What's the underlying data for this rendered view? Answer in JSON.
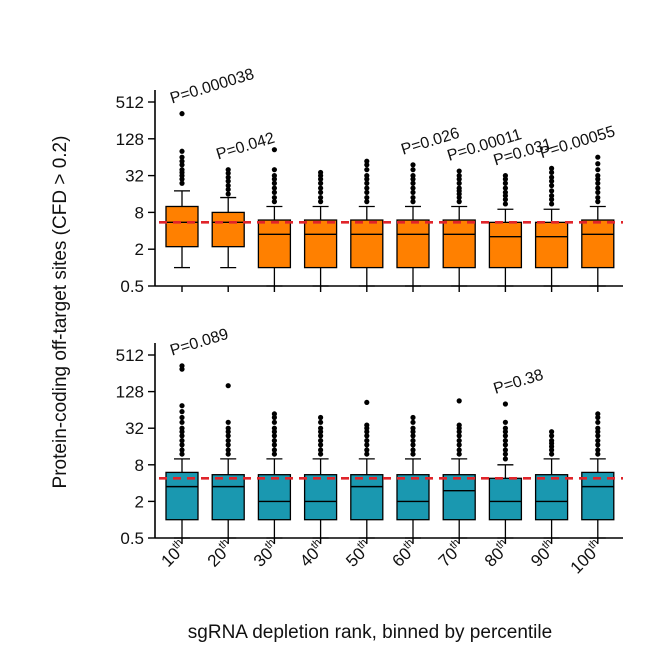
{
  "chart_data": {
    "type": "boxplot",
    "xlabel": "sgRNA depletion rank, binned by percentile",
    "ylabel": "Protein-coding off-target sites (CFD > 0.2)",
    "y_scale": "log2",
    "ylim": [
      0.5,
      512
    ],
    "yticks": [
      "512",
      "128",
      "32",
      "8",
      "2",
      "0.5"
    ],
    "categories": [
      {
        "base": "10",
        "sup": "th"
      },
      {
        "base": "20",
        "sup": "th"
      },
      {
        "base": "30",
        "sup": "th"
      },
      {
        "base": "40",
        "sup": "th"
      },
      {
        "base": "50",
        "sup": "th"
      },
      {
        "base": "60",
        "sup": "th"
      },
      {
        "base": "70",
        "sup": "th"
      },
      {
        "base": "80",
        "sup": "th"
      },
      {
        "base": "90",
        "sup": "th"
      },
      {
        "base": "100",
        "sup": "th"
      }
    ],
    "panels": [
      {
        "name": "top",
        "color": "#ff8000",
        "reference_line": 5.5,
        "reference_color": "#e0242a",
        "boxes": [
          {
            "low": 1,
            "q1": 2.2,
            "median": 5.5,
            "q3": 10,
            "high": 18,
            "outliers": [
              24,
              28,
              32,
              36,
              40,
              48,
              55,
              64,
              80,
              330
            ]
          },
          {
            "low": 1,
            "q1": 2.2,
            "median": 5.5,
            "q3": 8,
            "high": 14,
            "outliers": [
              16,
              19,
              22,
              26,
              30,
              35,
              40
            ]
          },
          {
            "low": 0.5,
            "q1": 1,
            "median": 3.5,
            "q3": 6,
            "high": 10,
            "outliers": [
              12,
              14,
              17,
              20,
              24,
              28,
              32,
              40,
              85
            ]
          },
          {
            "low": 0.5,
            "q1": 1,
            "median": 3.5,
            "q3": 6,
            "high": 10,
            "outliers": [
              12,
              14,
              17,
              20,
              24,
              28,
              32,
              36
            ]
          },
          {
            "low": 0.5,
            "q1": 1,
            "median": 3.5,
            "q3": 6,
            "high": 10,
            "outliers": [
              12,
              14,
              17,
              20,
              24,
              28,
              32,
              40,
              48,
              55
            ]
          },
          {
            "low": 0.5,
            "q1": 1,
            "median": 3.5,
            "q3": 6,
            "high": 10,
            "outliers": [
              12,
              14,
              17,
              20,
              24,
              28,
              32,
              40,
              48
            ]
          },
          {
            "low": 0.5,
            "q1": 1,
            "median": 3.5,
            "q3": 6,
            "high": 10,
            "outliers": [
              12,
              14,
              16,
              18,
              20,
              24,
              28,
              32,
              38
            ]
          },
          {
            "low": 0.5,
            "q1": 1,
            "median": 3.2,
            "q3": 5.5,
            "high": 9,
            "outliers": [
              11,
              13,
              15,
              17,
              20,
              24,
              28,
              32
            ]
          },
          {
            "low": 0.5,
            "q1": 1,
            "median": 3.2,
            "q3": 5.5,
            "high": 9,
            "outliers": [
              11,
              13,
              15,
              18,
              22,
              26,
              30,
              36,
              42
            ]
          },
          {
            "low": 0.5,
            "q1": 1,
            "median": 3.5,
            "q3": 6,
            "high": 10,
            "outliers": [
              12,
              14,
              17,
              20,
              24,
              28,
              32,
              40,
              50,
              64
            ]
          }
        ],
        "pvalues": [
          {
            "bin": 0,
            "text": "P=0.000038"
          },
          {
            "bin": 1,
            "text": "P=0.042"
          },
          {
            "bin": 5,
            "text": "P=0.026"
          },
          {
            "bin": 6,
            "text": "P=0.00011"
          },
          {
            "bin": 7,
            "text": "P=0.031"
          },
          {
            "bin": 8,
            "text": "P=0.00055"
          }
        ]
      },
      {
        "name": "bottom",
        "color": "#1a98b0",
        "reference_line": 4.8,
        "reference_color": "#e0242a",
        "boxes": [
          {
            "low": 0.5,
            "q1": 1,
            "median": 3.5,
            "q3": 6,
            "high": 10,
            "outliers": [
              12,
              14,
              17,
              20,
              24,
              28,
              32,
              40,
              48,
              60,
              75,
              300,
              340
            ]
          },
          {
            "low": 0.5,
            "q1": 1,
            "median": 3.5,
            "q3": 5.5,
            "high": 10,
            "outliers": [
              12,
              14,
              17,
              20,
              24,
              28,
              32,
              40,
              160
            ]
          },
          {
            "low": 0.5,
            "q1": 1,
            "median": 2,
            "q3": 5.5,
            "high": 10,
            "outliers": [
              12,
              14,
              17,
              20,
              24,
              28,
              32,
              40,
              48,
              55
            ]
          },
          {
            "low": 0.5,
            "q1": 1,
            "median": 2,
            "q3": 5.5,
            "high": 10,
            "outliers": [
              12,
              14,
              17,
              20,
              24,
              28,
              32,
              40,
              48
            ]
          },
          {
            "low": 0.5,
            "q1": 1,
            "median": 3.5,
            "q3": 5.5,
            "high": 10,
            "outliers": [
              12,
              14,
              17,
              20,
              24,
              28,
              32,
              36,
              85
            ]
          },
          {
            "low": 0.5,
            "q1": 1,
            "median": 2,
            "q3": 5.5,
            "high": 10,
            "outliers": [
              12,
              14,
              17,
              20,
              24,
              28,
              32,
              40,
              48
            ]
          },
          {
            "low": 0.5,
            "q1": 1,
            "median": 3,
            "q3": 5.5,
            "high": 10,
            "outliers": [
              12,
              14,
              17,
              20,
              24,
              28,
              32,
              36,
              90
            ]
          },
          {
            "low": 0.5,
            "q1": 1,
            "median": 2,
            "q3": 4.8,
            "high": 8,
            "outliers": [
              10,
              12,
              14,
              17,
              20,
              24,
              28,
              32,
              40,
              80
            ]
          },
          {
            "low": 0.5,
            "q1": 1,
            "median": 2,
            "q3": 5.5,
            "high": 10,
            "outliers": [
              12,
              14,
              16,
              18,
              20,
              24,
              28
            ]
          },
          {
            "low": 0.5,
            "q1": 1,
            "median": 3.5,
            "q3": 6,
            "high": 10,
            "outliers": [
              12,
              14,
              17,
              20,
              24,
              28,
              32,
              40,
              48,
              55
            ]
          }
        ],
        "pvalues": [
          {
            "bin": 0,
            "text": "P=0.089"
          },
          {
            "bin": 7,
            "text": "P=0.38"
          }
        ]
      }
    ]
  }
}
